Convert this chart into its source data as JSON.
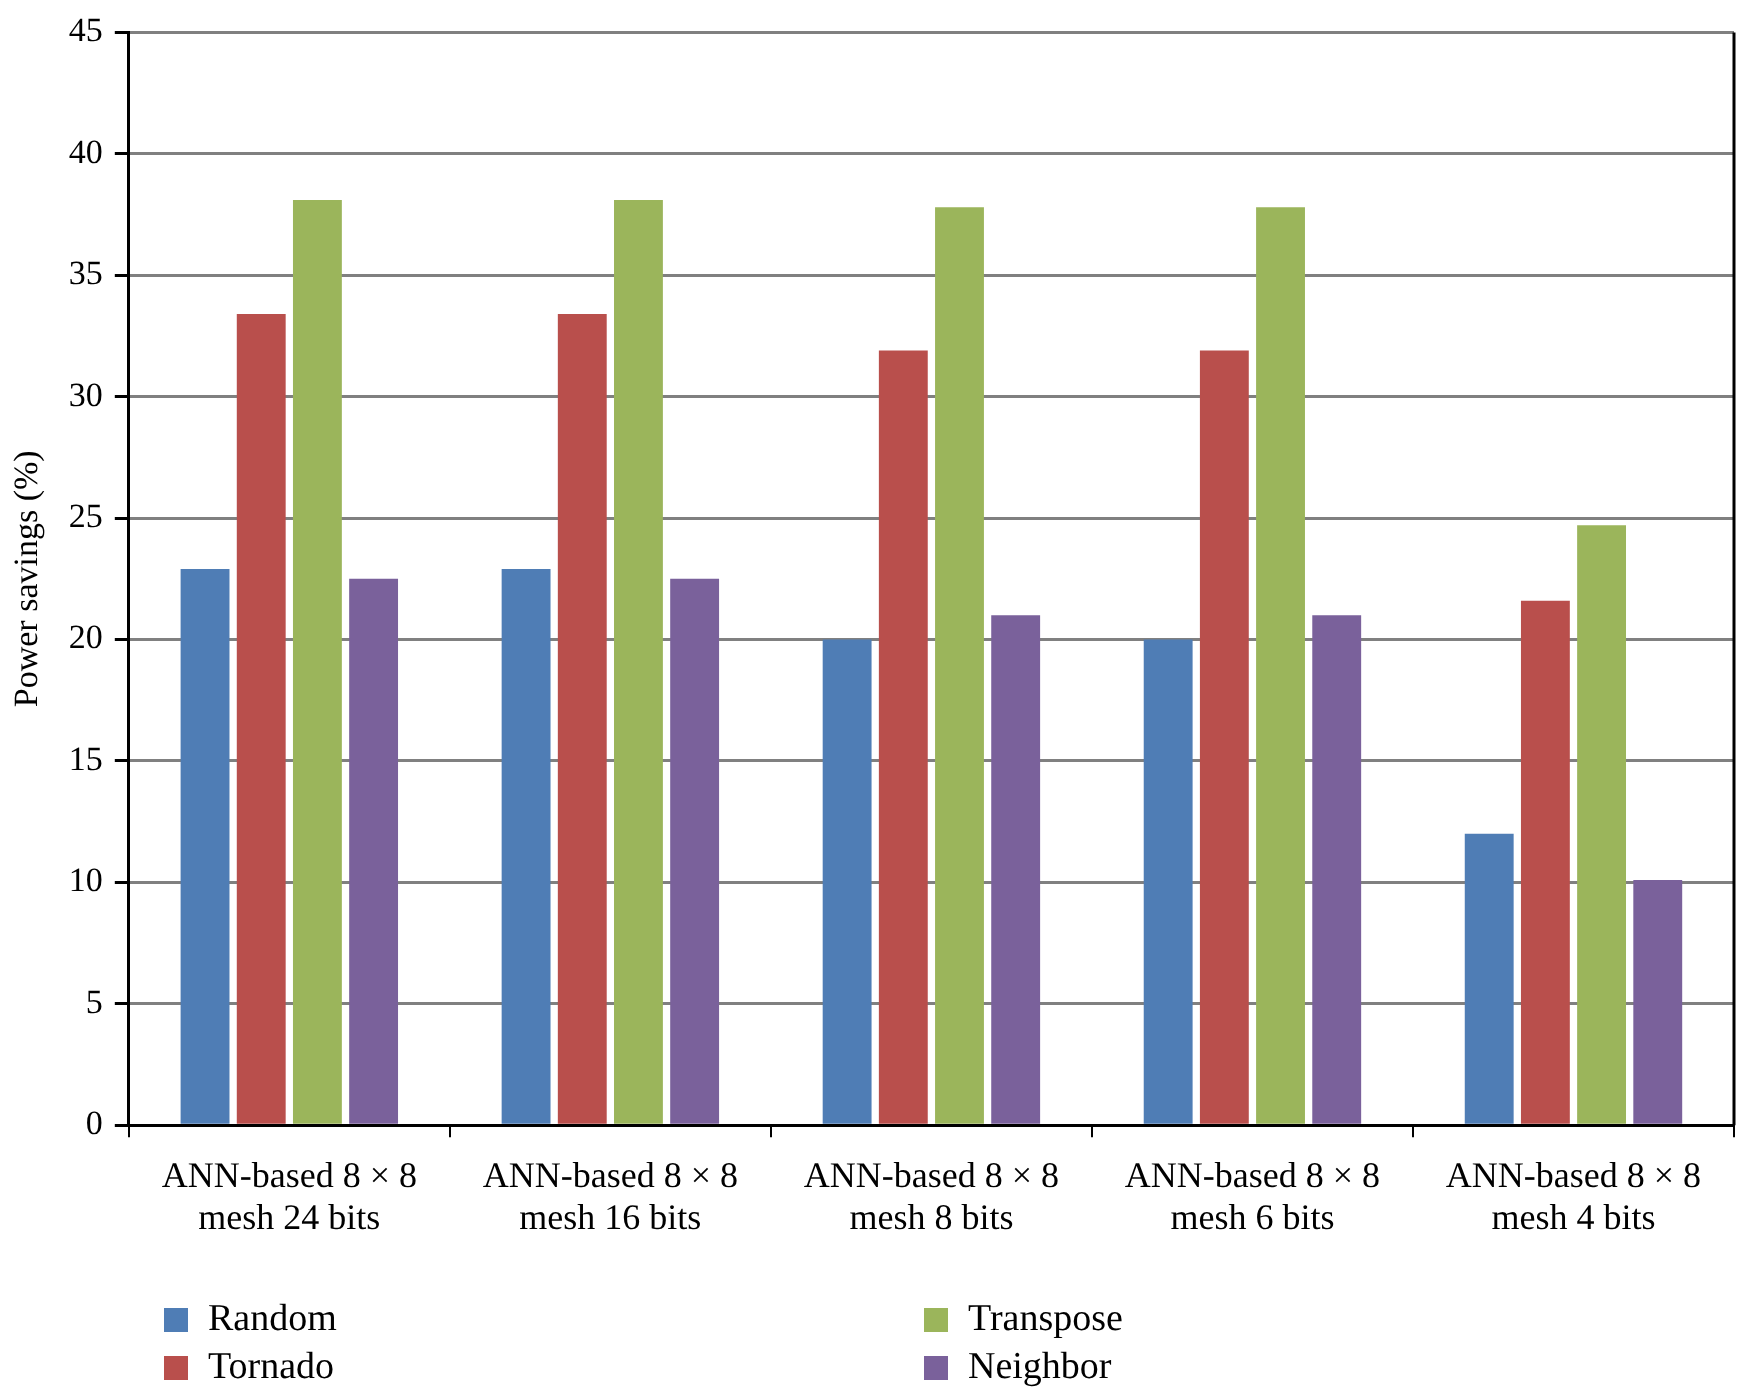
{
  "chart_data": {
    "type": "bar",
    "ylabel": "Power savings (%)",
    "categories": [
      "ANN-based 8 × 8\nmesh 24 bits",
      "ANN-based 8 × 8\nmesh 16 bits",
      "ANN-based 8 × 8\nmesh 8 bits",
      "ANN-based 8 × 8\nmesh 6 bits",
      "ANN-based 8 × 8\nmesh 4 bits"
    ],
    "series": [
      {
        "name": "Random",
        "color": "#4f7db5",
        "values": [
          22.9,
          22.9,
          20.0,
          20.0,
          12.0
        ]
      },
      {
        "name": "Tornado",
        "color": "#b94f4c",
        "values": [
          33.4,
          33.4,
          31.9,
          31.9,
          21.6
        ]
      },
      {
        "name": "Transpose",
        "color": "#9bb55b",
        "values": [
          38.1,
          38.1,
          37.8,
          37.8,
          24.7
        ]
      },
      {
        "name": "Neighbor",
        "color": "#7a619b",
        "values": [
          22.5,
          22.5,
          21.0,
          21.0,
          10.1
        ]
      }
    ],
    "ylim": [
      0,
      45
    ],
    "yticks": [
      0,
      5,
      10,
      15,
      20,
      25,
      30,
      35,
      40,
      45
    ],
    "grid": "y",
    "legend": "bottom left"
  }
}
